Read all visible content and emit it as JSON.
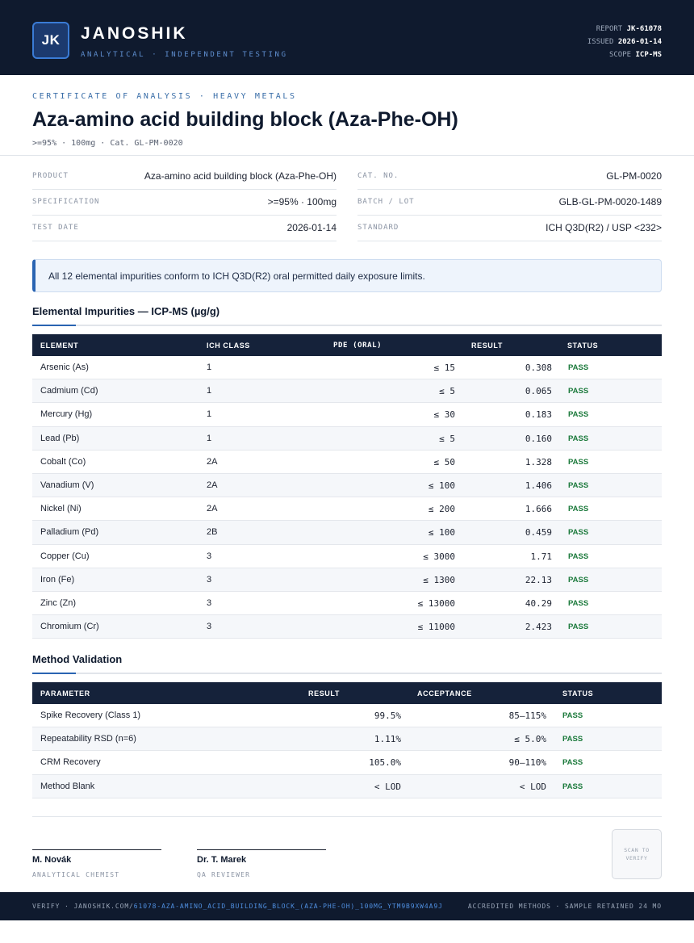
{
  "header": {
    "logo_initials": "JK",
    "brand": "JANOSHIK",
    "brand_sub": "ANALYTICAL · INDEPENDENT TESTING",
    "report_label": "REPORT",
    "report_value": "JK-61078",
    "issued_label": "ISSUED",
    "issued_value": "2026-01-14",
    "scope_label": "SCOPE",
    "scope_value": "ICP-MS"
  },
  "document": {
    "cert_label": "CERTIFICATE OF ANALYSIS · HEAVY METALS",
    "title": "Aza-amino acid building block (Aza-Phe-OH)",
    "subline": ">=95% · 100mg  ·  Cat. GL-PM-0020"
  },
  "info": {
    "product_label": "PRODUCT",
    "product_value": "Aza-amino acid building block (Aza-Phe-OH)",
    "spec_label": "SPECIFICATION",
    "spec_value": ">=95% · 100mg",
    "testdate_label": "TEST DATE",
    "testdate_value": "2026-01-14",
    "catno_label": "CAT. NO.",
    "catno_value": "GL-PM-0020",
    "batch_label": "BATCH / LOT",
    "batch_value": "GLB-GL-PM-0020-1489",
    "standard_label": "STANDARD",
    "standard_value": "ICH Q3D(R2) / USP <232>"
  },
  "note": "All 12 elemental impurities conform to ICH Q3D(R2) oral permitted daily exposure limits.",
  "impurities": {
    "title": "Elemental Impurities — ICP-MS (µg/g)",
    "headers": {
      "element": "ELEMENT",
      "ich_class": "ICH CLASS",
      "pde": "PDE (ORAL)",
      "result": "RESULT",
      "status": "STATUS"
    },
    "rows": [
      {
        "element": "Arsenic (As)",
        "ich_class": "1",
        "pde": "≤ 15",
        "result": "0.308",
        "status": "PASS"
      },
      {
        "element": "Cadmium (Cd)",
        "ich_class": "1",
        "pde": "≤ 5",
        "result": "0.065",
        "status": "PASS"
      },
      {
        "element": "Mercury (Hg)",
        "ich_class": "1",
        "pde": "≤ 30",
        "result": "0.183",
        "status": "PASS"
      },
      {
        "element": "Lead (Pb)",
        "ich_class": "1",
        "pde": "≤ 5",
        "result": "0.160",
        "status": "PASS"
      },
      {
        "element": "Cobalt (Co)",
        "ich_class": "2A",
        "pde": "≤ 50",
        "result": "1.328",
        "status": "PASS"
      },
      {
        "element": "Vanadium (V)",
        "ich_class": "2A",
        "pde": "≤ 100",
        "result": "1.406",
        "status": "PASS"
      },
      {
        "element": "Nickel (Ni)",
        "ich_class": "2A",
        "pde": "≤ 200",
        "result": "1.666",
        "status": "PASS"
      },
      {
        "element": "Palladium (Pd)",
        "ich_class": "2B",
        "pde": "≤ 100",
        "result": "0.459",
        "status": "PASS"
      },
      {
        "element": "Copper (Cu)",
        "ich_class": "3",
        "pde": "≤ 3000",
        "result": "1.71",
        "status": "PASS"
      },
      {
        "element": "Iron (Fe)",
        "ich_class": "3",
        "pde": "≤ 1300",
        "result": "22.13",
        "status": "PASS"
      },
      {
        "element": "Zinc (Zn)",
        "ich_class": "3",
        "pde": "≤ 13000",
        "result": "40.29",
        "status": "PASS"
      },
      {
        "element": "Chromium (Cr)",
        "ich_class": "3",
        "pde": "≤ 11000",
        "result": "2.423",
        "status": "PASS"
      }
    ]
  },
  "validation": {
    "title": "Method Validation",
    "headers": {
      "parameter": "PARAMETER",
      "result": "RESULT",
      "acceptance": "ACCEPTANCE",
      "status": "STATUS"
    },
    "rows": [
      {
        "parameter": "Spike Recovery (Class 1)",
        "result": "99.5%",
        "acceptance": "85–115%",
        "status": "PASS"
      },
      {
        "parameter": "Repeatability RSD (n=6)",
        "result": "1.11%",
        "acceptance": "≤ 5.0%",
        "status": "PASS"
      },
      {
        "parameter": "CRM Recovery",
        "result": "105.0%",
        "acceptance": "90–110%",
        "status": "PASS"
      },
      {
        "parameter": "Method Blank",
        "result": "< LOD",
        "acceptance": "< LOD",
        "status": "PASS"
      }
    ]
  },
  "signatures": [
    {
      "name": "M. Novák",
      "role": "ANALYTICAL CHEMIST"
    },
    {
      "name": "Dr. T. Marek",
      "role": "QA REVIEWER"
    }
  ],
  "qr_text": "SCAN TO VERIFY",
  "footer": {
    "verify_prefix": "VERIFY · JANOSHIK.COM/",
    "verify_path": "61078-AZA-AMINO_ACID_BUILDING_BLOCK_(AZA-PHE-OH)_100MG_YTM9B9XW4A9J",
    "accredited": "ACCREDITED METHODS · SAMPLE RETAINED 24 MO"
  },
  "colors": {
    "navy": "#0f1a2e",
    "accent_blue": "#2a64b2",
    "pass_green": "#1c7a3c"
  }
}
